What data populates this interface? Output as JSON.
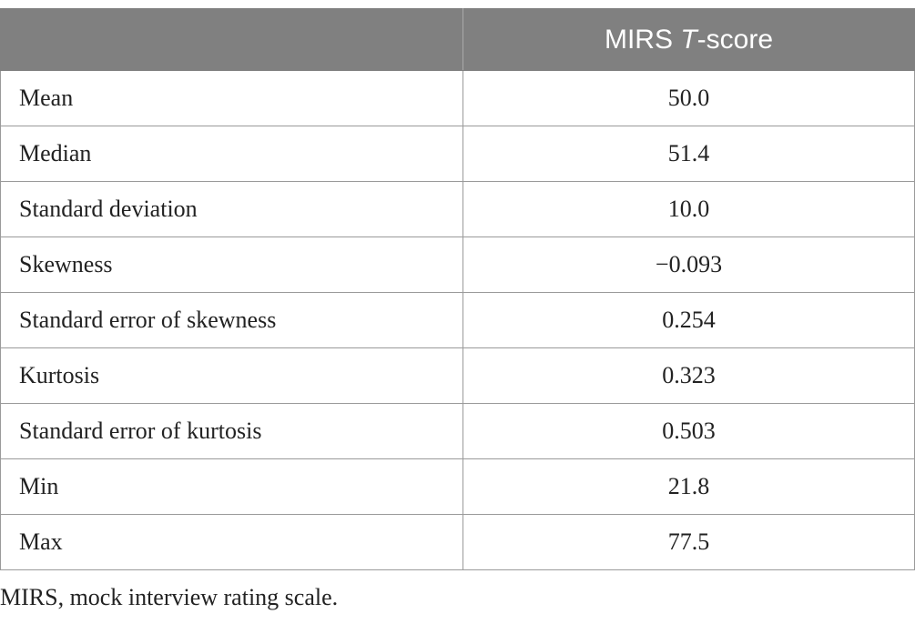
{
  "table": {
    "header": {
      "col1": "",
      "col2_prefix": "MIRS ",
      "col2_italic": "T",
      "col2_suffix": "-score"
    },
    "rows": [
      {
        "label": "Mean",
        "value": "50.0"
      },
      {
        "label": "Median",
        "value": "51.4"
      },
      {
        "label": "Standard deviation",
        "value": "10.0"
      },
      {
        "label": "Skewness",
        "value": "−0.093"
      },
      {
        "label": "Standard error of skewness",
        "value": "0.254"
      },
      {
        "label": "Kurtosis",
        "value": "0.323"
      },
      {
        "label": "Standard error of kurtosis",
        "value": "0.503"
      },
      {
        "label": "Min",
        "value": "21.8"
      },
      {
        "label": "Max",
        "value": "77.5"
      }
    ]
  },
  "footnote": "MIRS, mock interview rating scale.",
  "colors": {
    "header_bg": "#808080",
    "header_text": "#ffffff",
    "border": "#9a9a9a"
  }
}
